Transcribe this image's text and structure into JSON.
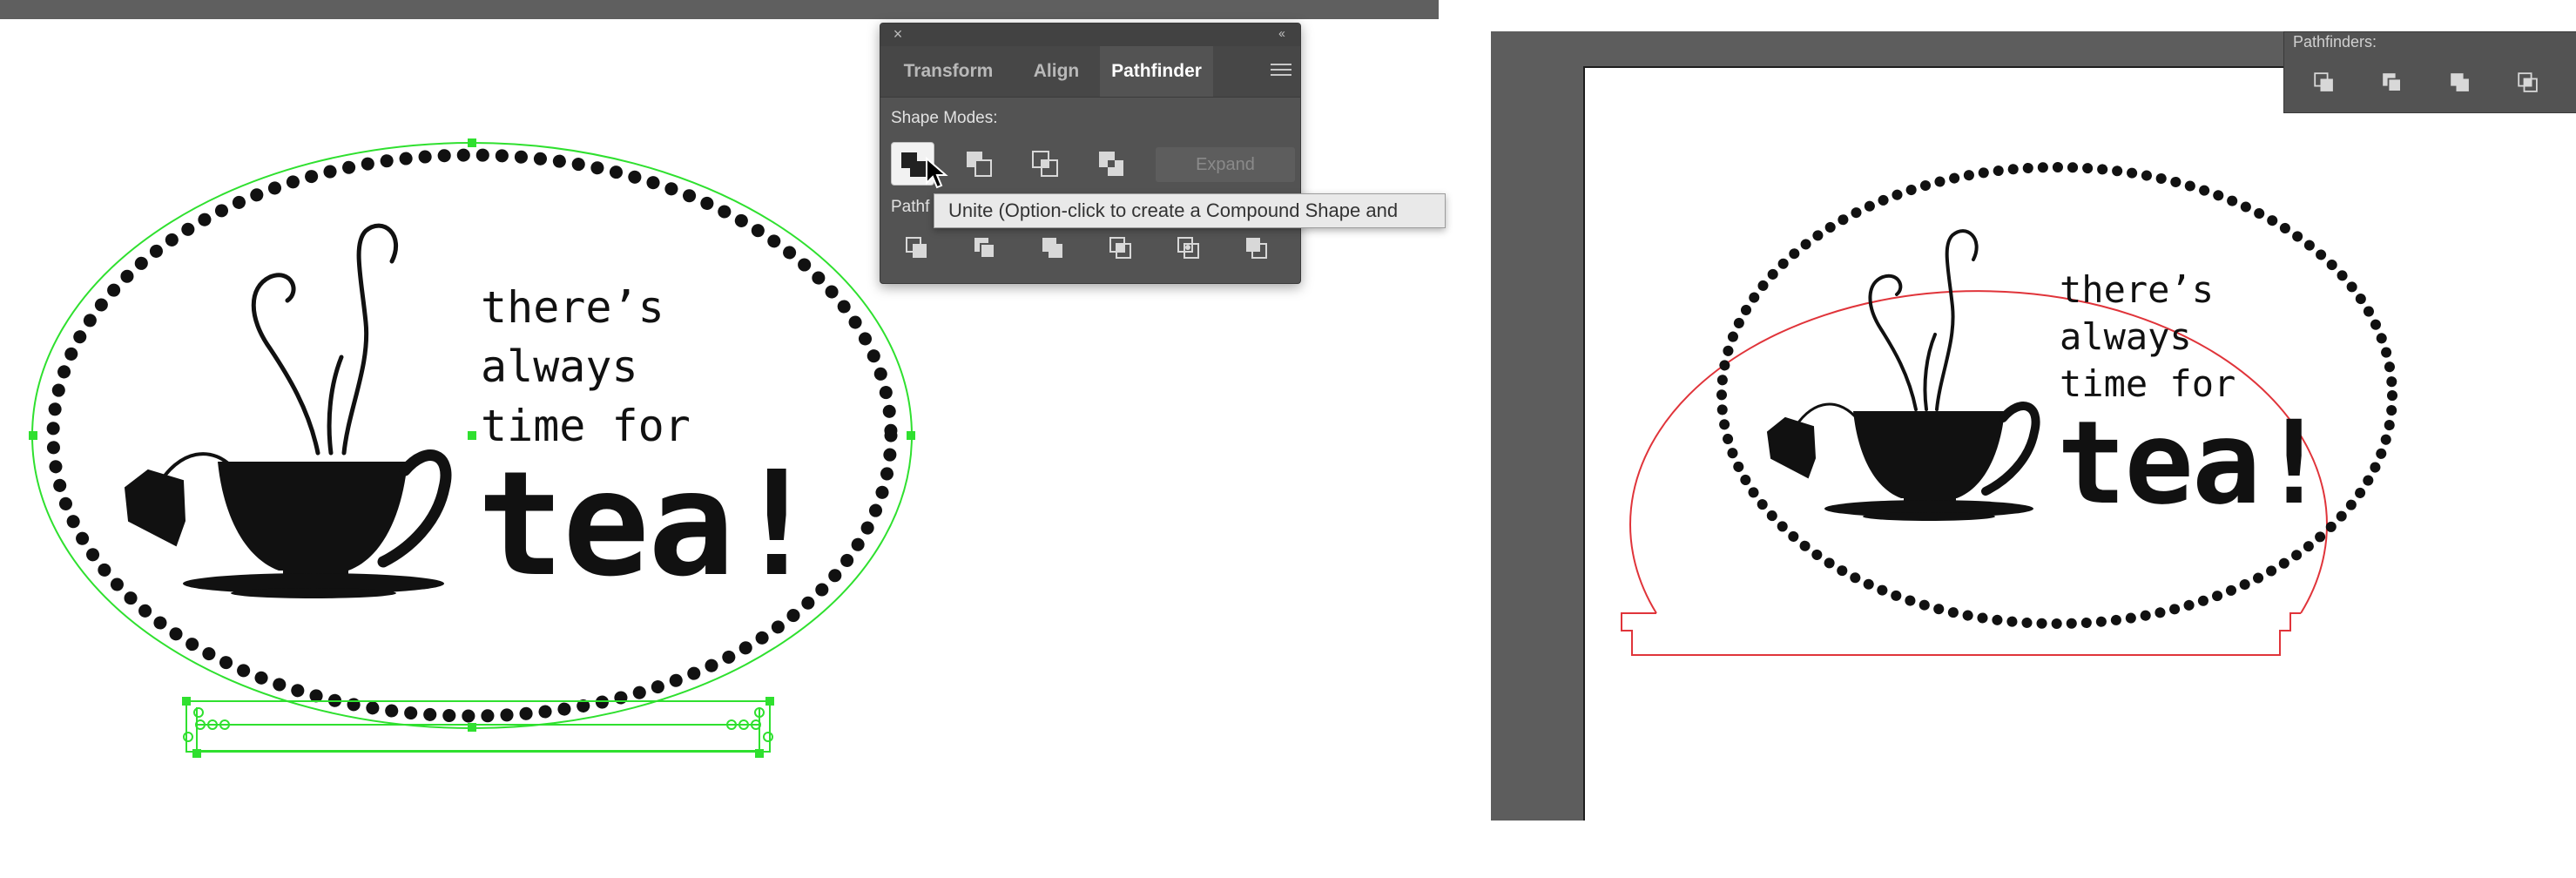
{
  "left_artboard": {
    "text_line_1": "there’s",
    "text_line_2": "always",
    "text_line_3": "time for",
    "text_big": "tea!"
  },
  "pathfinder_panel": {
    "close_symbol": "×",
    "collapse_symbol": "‹‹",
    "tabs": [
      {
        "label": "Transform"
      },
      {
        "label": "Align"
      },
      {
        "label": "Pathfinder"
      }
    ],
    "active_tab": "Pathfinder",
    "shape_modes_label": "Shape Modes:",
    "shape_mode_buttons": [
      "unite-icon",
      "minus-front-icon",
      "intersect-icon",
      "exclude-icon"
    ],
    "expand_label": "Expand",
    "pathfinders_label": "Pathf",
    "pathfinder_buttons": [
      "divide-icon",
      "trim-icon",
      "merge-icon",
      "crop-icon",
      "outline-icon",
      "minus-back-icon"
    ]
  },
  "tooltip": {
    "text": "Unite (Option-click to create a Compound Shape and"
  },
  "right_document": {
    "panel_label": "Pathfinders:",
    "text_line_1": "there’s",
    "text_line_2": "always",
    "text_line_3": "time for",
    "text_big": "tea!"
  },
  "colors": {
    "selection_green": "#2fe02f",
    "cut_line_red": "#e0343a",
    "panel_bg": "#535353",
    "canvas_gray": "#5d5d5d"
  }
}
